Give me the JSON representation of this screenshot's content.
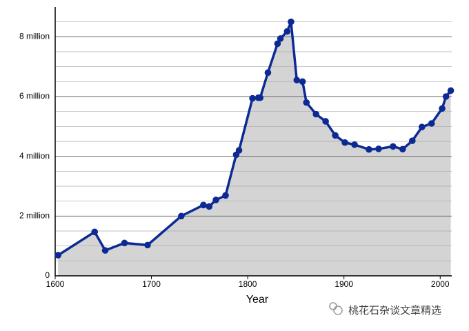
{
  "chart_data": {
    "type": "area-line",
    "x_label": "Year",
    "x": [
      1603,
      1641,
      1652,
      1672,
      1696,
      1731,
      1754,
      1760,
      1767,
      1777,
      1788,
      1791,
      1805,
      1811,
      1813,
      1821,
      1831,
      1834,
      1841,
      1845,
      1851,
      1857,
      1861,
      1871,
      1881,
      1891,
      1901,
      1911,
      1926,
      1936,
      1951,
      1961,
      1971,
      1981,
      1991,
      2002,
      2006,
      2011
    ],
    "values": [
      0.69,
      1.47,
      0.85,
      1.1,
      1.03,
      2.0,
      2.37,
      2.32,
      2.54,
      2.69,
      4.05,
      4.2,
      5.94,
      5.96,
      5.96,
      6.8,
      7.77,
      7.94,
      8.18,
      8.5,
      6.55,
      6.5,
      5.8,
      5.41,
      5.17,
      4.7,
      4.46,
      4.39,
      4.23,
      4.25,
      4.33,
      4.24,
      4.52,
      4.98,
      5.1,
      5.6,
      6.0,
      6.2
    ],
    "color": "#0d2a94",
    "fill_color": "#d4d4d4",
    "xlim": [
      1600,
      2012
    ],
    "xticks": [
      1600,
      1700,
      1800,
      1900,
      2000
    ],
    "ylim": [
      0,
      9
    ],
    "yticks": [
      0,
      {
        "value": 2,
        "label": "2 million"
      },
      {
        "value": 4,
        "label": "4 million"
      },
      {
        "value": 6,
        "label": "6 million"
      },
      {
        "value": 8,
        "label": "8 million"
      }
    ],
    "minor_yticks": [
      0.5,
      1,
      1.5,
      2.5,
      3,
      3.5,
      4.5,
      5,
      5.5,
      6.5,
      7,
      7.5,
      8.5
    ],
    "grid": true,
    "watermark": "桃花石杂谈文章精选"
  }
}
